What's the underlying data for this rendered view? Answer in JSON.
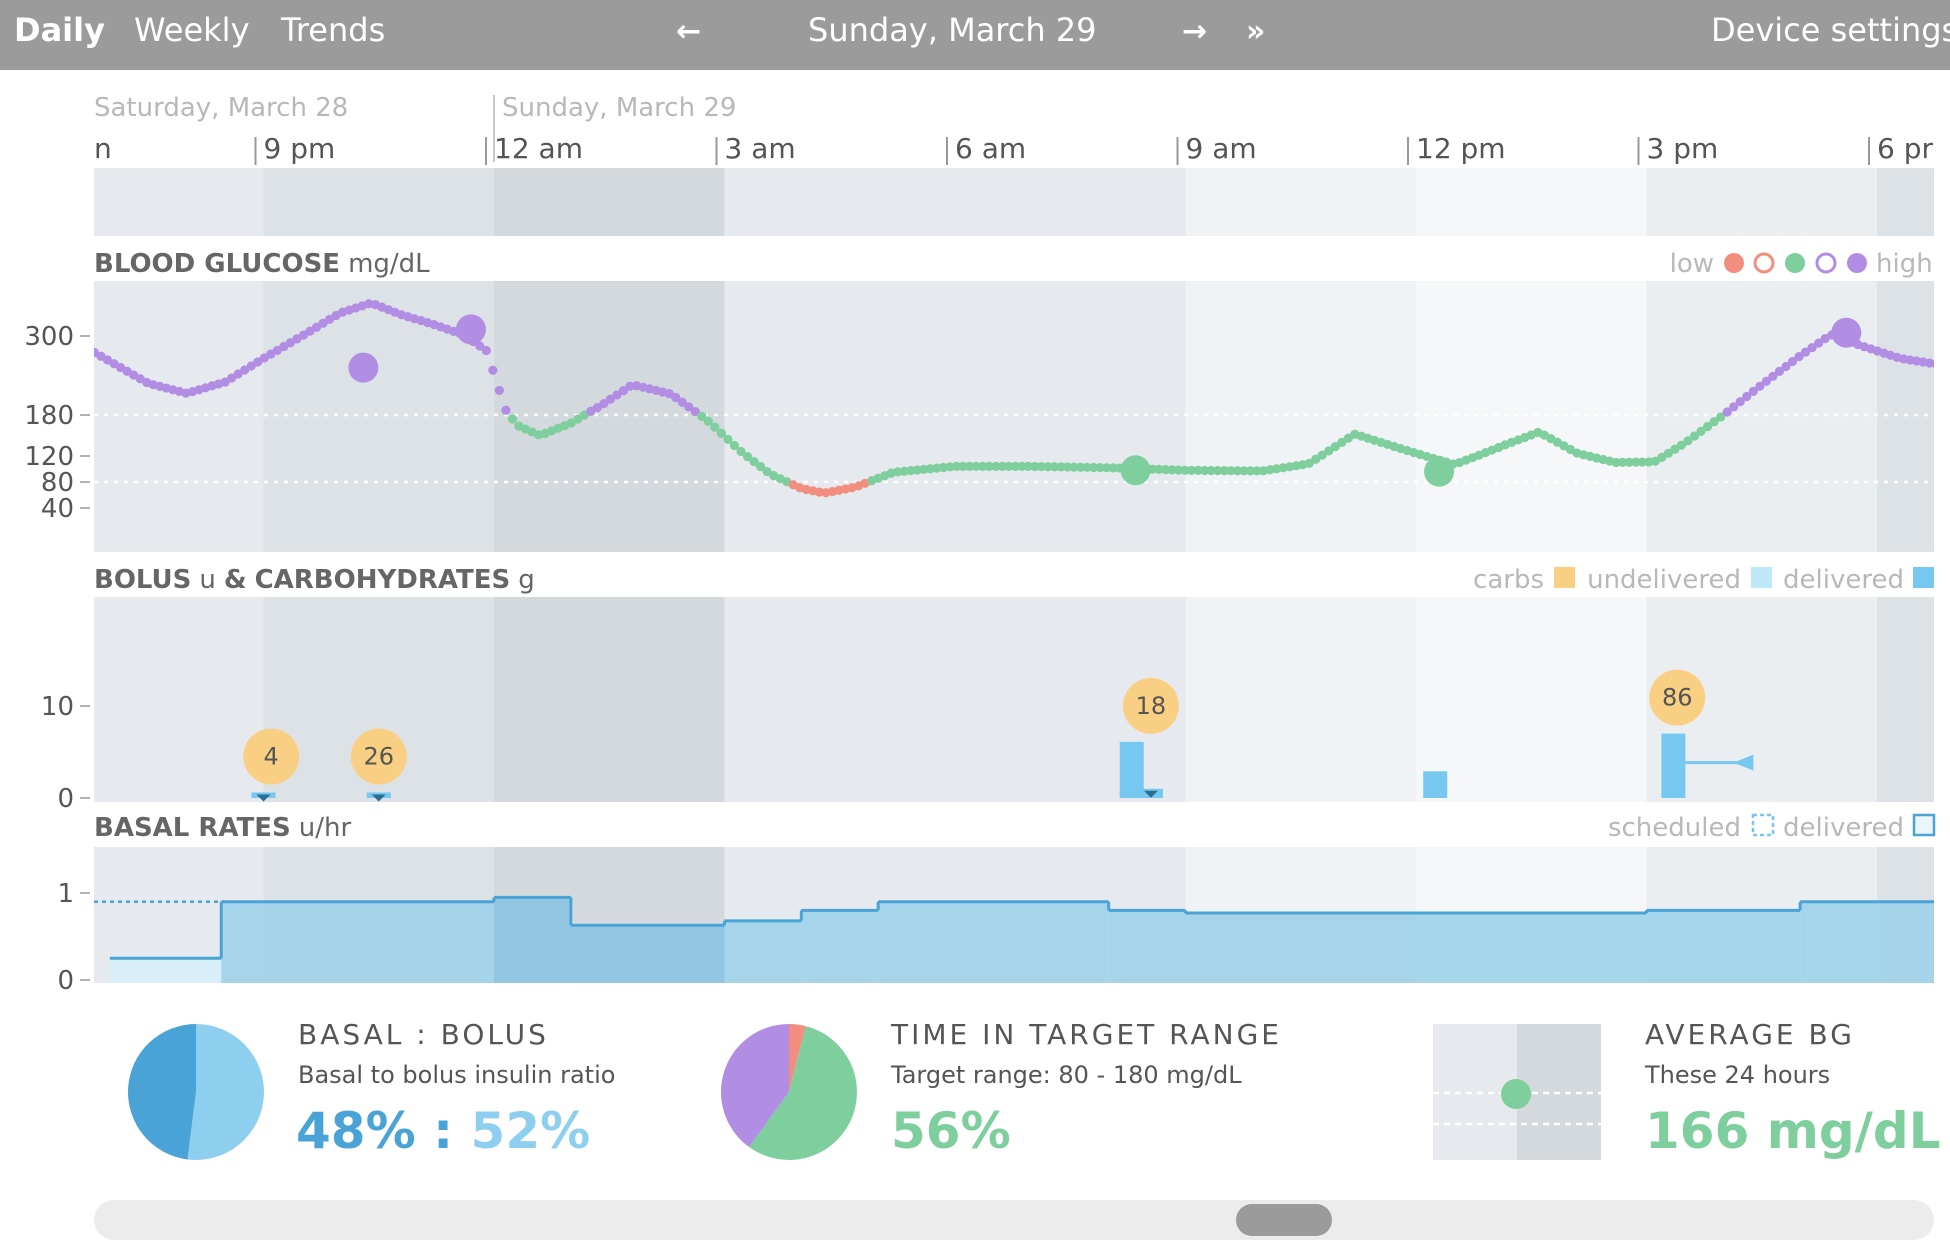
{
  "nav": {
    "tabs": [
      "Daily",
      "Weekly",
      "Trends"
    ],
    "active_tab": "Daily",
    "current_date": "Sunday, March 29",
    "device_settings": "Device settings"
  },
  "timeline": {
    "day_labels": [
      "Saturday, March 28",
      "Sunday, March 29"
    ],
    "hour_labels": [
      "n",
      "9 pm",
      "12 am",
      "3 am",
      "6 am",
      "9 am",
      "12 pm",
      "3 pm",
      "6 pr"
    ]
  },
  "bg_section": {
    "title": "BLOOD GLUCOSE",
    "unit": "mg/dL",
    "legend_low": "low",
    "legend_high": "high",
    "y_ticks": [
      "300",
      "180",
      "120",
      "80",
      "40"
    ],
    "target_low": 80,
    "target_high": 180,
    "colors": {
      "low": "#f28e7f",
      "target": "#7ecf9d",
      "high": "#b18de3"
    }
  },
  "bolus_section": {
    "title": "BOLUS",
    "unit_bolus": "u",
    "connector": "&",
    "title2": "CARBOHYDRATES",
    "unit_carbs": "g",
    "legend": [
      "carbs",
      "undelivered",
      "delivered"
    ],
    "y_ticks": [
      "10",
      "0"
    ],
    "carbs": [
      {
        "hour": -2.9,
        "grams": "4"
      },
      {
        "hour": -1.5,
        "grams": "26"
      },
      {
        "hour": 8.55,
        "grams": "18"
      },
      {
        "hour": 15.4,
        "grams": "86"
      }
    ],
    "boluses": [
      {
        "hour": -3.0,
        "units": 0.6
      },
      {
        "hour": -1.5,
        "units": 0.6
      },
      {
        "hour": 8.3,
        "units": 6.1
      },
      {
        "hour": 8.55,
        "units": 1.0
      },
      {
        "hour": 12.25,
        "units": 2.9
      },
      {
        "hour": 15.35,
        "units": 7.0
      }
    ],
    "colors": {
      "carbs": "#f9d083",
      "undelivered": "#bde8f6",
      "delivered": "#76c8f0"
    }
  },
  "basal_section": {
    "title": "BASAL RATES",
    "unit": "u/hr",
    "legend": [
      "scheduled",
      "delivered"
    ],
    "y_ticks": [
      "1",
      "0"
    ],
    "segments": [
      {
        "start": -5,
        "end": -3.55,
        "rate": 0.25
      },
      {
        "start": -3.55,
        "end": 0,
        "rate": 0.9
      },
      {
        "start": 0,
        "end": 1,
        "rate": 0.95
      },
      {
        "start": 1,
        "end": 3,
        "rate": 0.63
      },
      {
        "start": 3,
        "end": 4,
        "rate": 0.68
      },
      {
        "start": 4,
        "end": 5,
        "rate": 0.8
      },
      {
        "start": 5,
        "end": 8,
        "rate": 0.9
      },
      {
        "start": 8,
        "end": 9,
        "rate": 0.8
      },
      {
        "start": 9,
        "end": 15,
        "rate": 0.77
      },
      {
        "start": 15,
        "end": 17,
        "rate": 0.8
      },
      {
        "start": 17,
        "end": 19,
        "rate": 0.9
      }
    ]
  },
  "stats": {
    "basal_bolus": {
      "title": "BASAL : BOLUS",
      "subtitle": "Basal to bolus insulin ratio",
      "basal_value": "48%",
      "separator": ":",
      "bolus_value": "52%",
      "basal_fraction": 0.48,
      "colors": {
        "basal": "#4aa3d6",
        "bolus": "#8ecfef"
      }
    },
    "time_in_range": {
      "title": "TIME IN TARGET RANGE",
      "subtitle": "Target range: 80 - 180 mg/dL",
      "value": "56%",
      "fractions": {
        "target": 0.56,
        "high": 0.4,
        "low": 0.04
      }
    },
    "average_bg": {
      "title": "AVERAGE BG",
      "subtitle": "These 24 hours",
      "value": "166 mg/dL"
    }
  }
}
